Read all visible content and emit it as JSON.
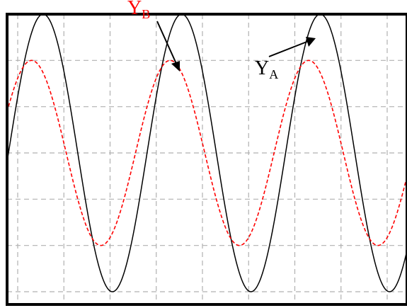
{
  "chart_data": {
    "type": "line",
    "title": "",
    "xlabel": "",
    "ylabel": "",
    "grid": true,
    "grid_divisions": {
      "x": 8,
      "y": 6
    },
    "x_range": [
      0,
      8
    ],
    "y_range": [
      -3,
      3
    ],
    "series": [
      {
        "name": "YA",
        "label_main": "Y",
        "label_sub": "A",
        "color": "#000000",
        "style": "solid",
        "waveform": "sine",
        "amplitude_div": 3,
        "period_div": 3,
        "phase_deg": 0,
        "offset_div": 0
      },
      {
        "name": "YB",
        "label_main": "Y",
        "label_sub": "B",
        "color": "#ff0000",
        "style": "dashed",
        "waveform": "sine",
        "amplitude_div": 2,
        "period_div": 3,
        "phase_deg": 30,
        "offset_div": 0
      }
    ]
  },
  "colors": {
    "frame": "#000000",
    "grid": "#b0b0b0",
    "background": "#ffffff"
  }
}
